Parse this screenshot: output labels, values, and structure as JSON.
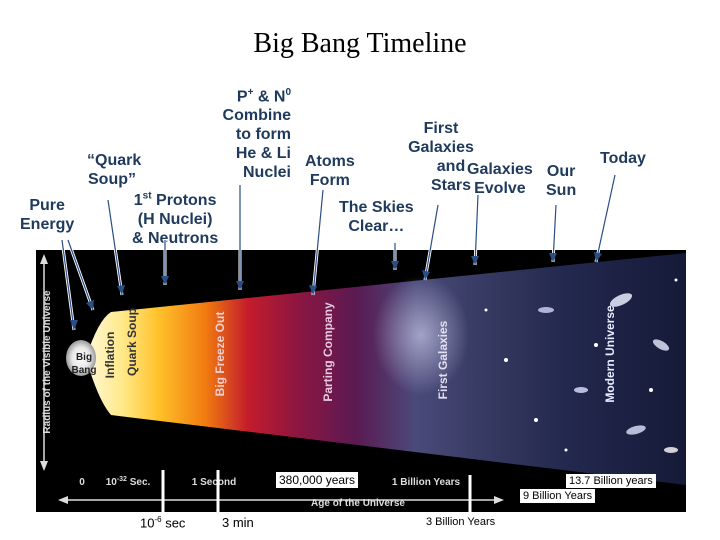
{
  "title": "Big Bang Timeline",
  "labels": {
    "pure_energy": [
      "Pure",
      "Energy"
    ],
    "quark_soup": [
      "“Quark",
      "Soup”"
    ],
    "first_protons": [
      "1st Protons",
      "(H Nuclei)",
      "& Neutrons"
    ],
    "combine": [
      "P+ & N0",
      "Combine",
      "to form",
      "He & Li",
      "Nuclei"
    ],
    "atoms_form": [
      "Atoms",
      "Form"
    ],
    "skies_clear": [
      "The Skies",
      "Clear…"
    ],
    "first_galaxies": [
      "First",
      "Galaxies",
      "and",
      "Stars"
    ],
    "galaxies_evolve": [
      "Galaxies",
      "Evolve"
    ],
    "our_sun": [
      "Our",
      "Sun"
    ],
    "today": "Today"
  },
  "figure": {
    "axis_vertical": "Radius of the Visible Universe",
    "axis_horizontal": "Age of the Universe",
    "big_bang": [
      "Big",
      "Bang"
    ],
    "eras": [
      "Inflation",
      "Quark Soup",
      "Big Freeze Out",
      "Parting Company",
      "First Galaxies",
      "Modern Universe"
    ],
    "ticks": [
      "0",
      "10-32 Sec.",
      "1 Second",
      "1 Billion Years"
    ]
  },
  "annotations": {
    "t_380k": "380,000 years",
    "t_13_7b": "13.7 Billion years",
    "t_9b": "9 Billion Years",
    "t_10_6": "10-6 sec",
    "t_3min": "3 min",
    "t_3b": "3 Billion Years"
  }
}
